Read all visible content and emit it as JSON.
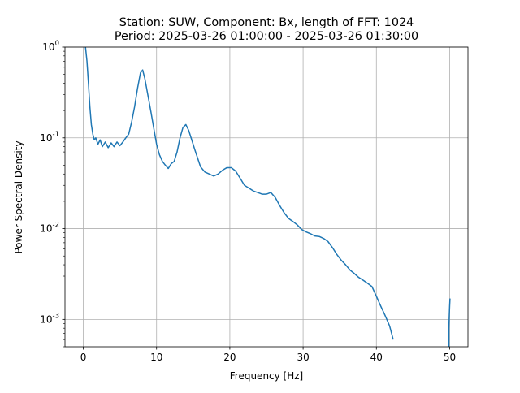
{
  "chart_data": {
    "type": "line",
    "title_line1": "Station: SUW, Component: Bx, length of FFT: 1024",
    "title_line2": "Period: 2025-03-26 01:00:00 - 2025-03-26 01:30:00",
    "xlabel": "Frequency [Hz]",
    "ylabel": "Power Spectral Density",
    "xlim": [
      -2.5,
      52.5
    ],
    "ylim": [
      0.0005,
      1
    ],
    "yscale": "log",
    "grid": true,
    "x_ticks": [
      0,
      10,
      20,
      30,
      40,
      50
    ],
    "x_tick_labels": [
      "0",
      "10",
      "20",
      "30",
      "40",
      "50"
    ],
    "y_ticks": [
      0.001,
      0.01,
      0.1,
      1
    ],
    "y_tick_labels": [
      "10^-3",
      "10^-2",
      "10^-1",
      "10^0"
    ],
    "line_color": "#1f77b4",
    "series": [
      {
        "x": [
          0.3,
          0.5,
          0.7,
          0.9,
          1.1,
          1.3,
          1.5,
          1.7,
          2.0,
          2.3,
          2.6,
          3.0,
          3.4,
          3.8,
          4.2,
          4.6,
          5.0,
          5.4,
          5.8,
          6.2,
          6.6,
          7.0,
          7.4,
          7.8,
          8.1,
          8.4,
          8.8,
          9.2,
          9.6,
          10.0,
          10.4,
          10.8,
          11.2,
          11.6,
          12.0,
          12.4,
          12.8,
          13.2,
          13.6,
          14.0,
          14.4,
          14.8,
          15.2,
          15.6,
          16.0,
          16.6,
          17.2,
          17.8,
          18.4,
          19.0,
          19.6,
          20.2,
          20.8,
          21.4,
          22.0,
          22.6,
          23.2,
          23.8,
          24.4,
          25.0,
          25.6,
          26.2,
          26.8,
          27.4,
          28.0,
          28.6,
          29.2,
          29.8,
          30.4,
          31.0,
          31.6,
          32.2,
          32.8,
          33.4,
          34.0,
          34.6,
          35.2,
          35.8,
          36.4,
          37.0,
          37.6,
          38.2,
          38.8,
          39.4,
          40.0,
          40.6,
          41.2,
          41.8,
          42.3
        ],
        "values": [
          1.0,
          0.7,
          0.4,
          0.22,
          0.14,
          0.11,
          0.095,
          0.1,
          0.085,
          0.095,
          0.08,
          0.09,
          0.078,
          0.088,
          0.08,
          0.09,
          0.082,
          0.09,
          0.1,
          0.11,
          0.15,
          0.22,
          0.35,
          0.52,
          0.56,
          0.45,
          0.3,
          0.2,
          0.13,
          0.085,
          0.065,
          0.055,
          0.05,
          0.046,
          0.052,
          0.055,
          0.07,
          0.1,
          0.13,
          0.14,
          0.12,
          0.095,
          0.075,
          0.06,
          0.048,
          0.042,
          0.04,
          0.038,
          0.04,
          0.044,
          0.047,
          0.047,
          0.043,
          0.036,
          0.03,
          0.028,
          0.026,
          0.025,
          0.024,
          0.024,
          0.025,
          0.022,
          0.018,
          0.015,
          0.013,
          0.012,
          0.011,
          0.0098,
          0.0092,
          0.0088,
          0.0083,
          0.0082,
          0.0078,
          0.0072,
          0.0062,
          0.0052,
          0.0045,
          0.004,
          0.0035,
          0.0032,
          0.0029,
          0.0027,
          0.0025,
          0.0023,
          0.0018,
          0.0014,
          0.0011,
          0.00085,
          0.0006
        ]
      },
      {
        "x": [
          49.9,
          49.9,
          49.95,
          50.0,
          50.05
        ],
        "values": [
          0.0005,
          0.0008,
          0.0011,
          0.0014,
          0.0017
        ]
      }
    ]
  }
}
